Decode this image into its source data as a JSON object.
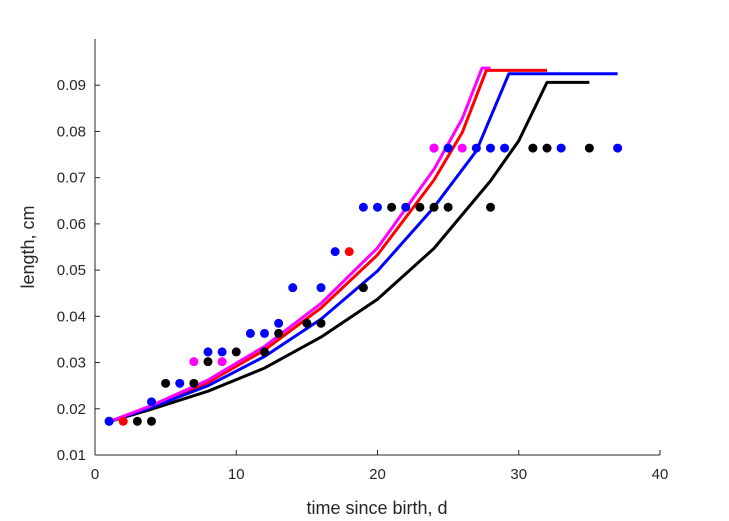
{
  "chart_data": {
    "type": "scatter",
    "title": "",
    "xlabel": "time since birth, d",
    "ylabel": "length, cm",
    "xlim": [
      0,
      40
    ],
    "ylim": [
      0.01,
      0.1
    ],
    "xticks": [
      0,
      10,
      20,
      30,
      40
    ],
    "yticks": [
      0.01,
      0.02,
      0.03,
      0.04,
      0.05,
      0.06,
      0.07,
      0.08,
      0.09
    ],
    "grid": false,
    "legend": false,
    "series": [
      {
        "color": "#000000",
        "kind": "points",
        "points": [
          [
            1,
            0.0173
          ],
          [
            3,
            0.0173
          ],
          [
            4,
            0.0173
          ],
          [
            5,
            0.0255
          ],
          [
            7,
            0.0255
          ],
          [
            8,
            0.0302
          ],
          [
            10,
            0.0323
          ],
          [
            12,
            0.0323
          ],
          [
            13,
            0.0363
          ],
          [
            15,
            0.0385
          ],
          [
            16,
            0.0385
          ],
          [
            19,
            0.0462
          ],
          [
            21,
            0.0636
          ],
          [
            23,
            0.0636
          ],
          [
            24,
            0.0636
          ],
          [
            25,
            0.0636
          ],
          [
            28,
            0.0636
          ],
          [
            31,
            0.0764
          ],
          [
            32,
            0.0764
          ],
          [
            35,
            0.0764
          ]
        ]
      },
      {
        "color": "#ff0000",
        "kind": "points",
        "points": [
          [
            2,
            0.0173
          ],
          [
            18,
            0.054
          ]
        ]
      },
      {
        "color": "#0000ff",
        "kind": "points",
        "points": [
          [
            1,
            0.0173
          ],
          [
            4,
            0.0215
          ],
          [
            6,
            0.0255
          ],
          [
            8,
            0.0323
          ],
          [
            9,
            0.0323
          ],
          [
            11,
            0.0363
          ],
          [
            12,
            0.0363
          ],
          [
            13,
            0.0385
          ],
          [
            14,
            0.0462
          ],
          [
            16,
            0.0462
          ],
          [
            17,
            0.054
          ],
          [
            19,
            0.0636
          ],
          [
            20,
            0.0636
          ],
          [
            22,
            0.0636
          ],
          [
            24,
            0.0764
          ],
          [
            25,
            0.0764
          ],
          [
            27,
            0.0764
          ],
          [
            28,
            0.0764
          ],
          [
            29,
            0.0764
          ],
          [
            33,
            0.0764
          ],
          [
            37,
            0.0764
          ]
        ]
      },
      {
        "color": "#ff00ff",
        "kind": "points",
        "points": [
          [
            7,
            0.0302
          ],
          [
            9,
            0.0302
          ],
          [
            24,
            0.0764
          ],
          [
            26,
            0.0764
          ]
        ]
      },
      {
        "color": "#000000",
        "kind": "line",
        "points": [
          [
            1,
            0.0172
          ],
          [
            4,
            0.0199
          ],
          [
            8,
            0.0238
          ],
          [
            12,
            0.0288
          ],
          [
            16,
            0.0355
          ],
          [
            20,
            0.0437
          ],
          [
            24,
            0.0547
          ],
          [
            28,
            0.0693
          ],
          [
            30,
            0.078
          ],
          [
            32,
            0.0906
          ],
          [
            35,
            0.0906
          ]
        ]
      },
      {
        "color": "#ff0000",
        "kind": "line",
        "points": [
          [
            1,
            0.0172
          ],
          [
            4,
            0.0205
          ],
          [
            8,
            0.0257
          ],
          [
            12,
            0.0327
          ],
          [
            16,
            0.0418
          ],
          [
            20,
            0.0533
          ],
          [
            24,
            0.0695
          ],
          [
            26,
            0.0798
          ],
          [
            27.7,
            0.0932
          ],
          [
            32,
            0.0932
          ]
        ]
      },
      {
        "color": "#0000ff",
        "kind": "line",
        "points": [
          [
            1,
            0.0172
          ],
          [
            4,
            0.0203
          ],
          [
            8,
            0.025
          ],
          [
            12,
            0.0313
          ],
          [
            16,
            0.0394
          ],
          [
            20,
            0.0498
          ],
          [
            24,
            0.0636
          ],
          [
            27,
            0.0758
          ],
          [
            29.3,
            0.0925
          ],
          [
            37,
            0.0925
          ]
        ]
      },
      {
        "color": "#ff00ff",
        "kind": "line",
        "points": [
          [
            1,
            0.0172
          ],
          [
            4,
            0.0207
          ],
          [
            8,
            0.0262
          ],
          [
            12,
            0.0335
          ],
          [
            16,
            0.0428
          ],
          [
            20,
            0.0548
          ],
          [
            24,
            0.0718
          ],
          [
            26,
            0.0828
          ],
          [
            27.4,
            0.0937
          ],
          [
            28,
            0.0937
          ]
        ]
      }
    ]
  }
}
